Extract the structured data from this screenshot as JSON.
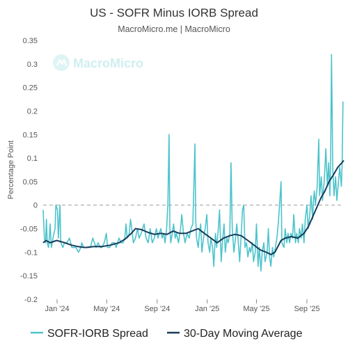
{
  "chart_data": {
    "type": "line",
    "title": "US - SOFR Minus IORB Spread",
    "subtitle": "MacroMicro.me | MacroMicro",
    "ylabel": "Percentage Point",
    "ylim": [
      -0.2,
      0.35
    ],
    "yticks": [
      0.35,
      0.3,
      0.25,
      0.2,
      0.15,
      0.1,
      0.05,
      0,
      -0.05,
      -0.1,
      -0.15,
      -0.2
    ],
    "ytick_labels": [
      "0.35",
      "0.3",
      "0.25",
      "0.2",
      "0.15",
      "0.1",
      "0.05",
      "0",
      "-0.05",
      "-0.1",
      "-0.15",
      "-0.2"
    ],
    "xlim": [
      "2023-11-28",
      "2025-11-30"
    ],
    "xticks": [
      {
        "date": "2024-01-01",
        "label": "Jan '24"
      },
      {
        "date": "2024-05-01",
        "label": "May '24"
      },
      {
        "date": "2024-09-01",
        "label": "Sep '24"
      },
      {
        "date": "2025-01-01",
        "label": "Jan '25"
      },
      {
        "date": "2025-05-01",
        "label": "May '25"
      },
      {
        "date": "2025-09-01",
        "label": "Sep '25"
      }
    ],
    "reference_line": {
      "y": 0,
      "style": "dashed"
    },
    "legend_position": "bottom",
    "series": [
      {
        "name": "SOFR-IORB Spread",
        "color": "#4cc3cb",
        "points": [
          [
            "2023-11-28",
            -0.01
          ],
          [
            "2023-12-01",
            -0.07
          ],
          [
            "2023-12-04",
            -0.08
          ],
          [
            "2023-12-06",
            -0.03
          ],
          [
            "2023-12-08",
            -0.08
          ],
          [
            "2023-12-11",
            -0.09
          ],
          [
            "2023-12-13",
            -0.07
          ],
          [
            "2023-12-15",
            -0.04
          ],
          [
            "2023-12-18",
            -0.09
          ],
          [
            "2023-12-20",
            -0.08
          ],
          [
            "2023-12-22",
            -0.07
          ],
          [
            "2023-12-27",
            -0.05
          ],
          [
            "2023-12-29",
            0.0
          ],
          [
            "2024-01-02",
            -0.01
          ],
          [
            "2024-01-04",
            -0.07
          ],
          [
            "2024-01-08",
            0.0
          ],
          [
            "2024-01-10",
            -0.08
          ],
          [
            "2024-01-15",
            -0.09
          ],
          [
            "2024-01-19",
            -0.08
          ],
          [
            "2024-01-25",
            -0.08
          ],
          [
            "2024-01-31",
            -0.07
          ],
          [
            "2024-02-06",
            -0.09
          ],
          [
            "2024-02-12",
            -0.09
          ],
          [
            "2024-02-16",
            -0.09
          ],
          [
            "2024-02-22",
            -0.1
          ],
          [
            "2024-02-28",
            -0.09
          ],
          [
            "2024-03-01",
            -0.08
          ],
          [
            "2024-03-06",
            -0.09
          ],
          [
            "2024-03-12",
            -0.09
          ],
          [
            "2024-03-18",
            -0.09
          ],
          [
            "2024-03-22",
            -0.09
          ],
          [
            "2024-03-28",
            -0.07
          ],
          [
            "2024-04-01",
            -0.08
          ],
          [
            "2024-04-05",
            -0.09
          ],
          [
            "2024-04-10",
            -0.08
          ],
          [
            "2024-04-15",
            -0.09
          ],
          [
            "2024-04-19",
            -0.09
          ],
          [
            "2024-04-25",
            -0.08
          ],
          [
            "2024-04-30",
            -0.06
          ],
          [
            "2024-05-03",
            -0.09
          ],
          [
            "2024-05-08",
            -0.09
          ],
          [
            "2024-05-14",
            -0.08
          ],
          [
            "2024-05-20",
            -0.08
          ],
          [
            "2024-05-24",
            -0.09
          ],
          [
            "2024-05-31",
            -0.07
          ],
          [
            "2024-06-05",
            -0.08
          ],
          [
            "2024-06-10",
            -0.08
          ],
          [
            "2024-06-14",
            -0.07
          ],
          [
            "2024-06-17",
            -0.04
          ],
          [
            "2024-06-20",
            -0.07
          ],
          [
            "2024-06-25",
            -0.06
          ],
          [
            "2024-06-28",
            -0.03
          ],
          [
            "2024-07-01",
            -0.05
          ],
          [
            "2024-07-05",
            -0.08
          ],
          [
            "2024-07-10",
            -0.07
          ],
          [
            "2024-07-15",
            -0.05
          ],
          [
            "2024-07-19",
            -0.07
          ],
          [
            "2024-07-24",
            -0.06
          ],
          [
            "2024-07-31",
            -0.04
          ],
          [
            "2024-08-05",
            -0.07
          ],
          [
            "2024-08-10",
            -0.08
          ],
          [
            "2024-08-15",
            -0.05
          ],
          [
            "2024-08-20",
            -0.08
          ],
          [
            "2024-08-25",
            -0.07
          ],
          [
            "2024-08-30",
            -0.05
          ],
          [
            "2024-09-03",
            -0.07
          ],
          [
            "2024-09-06",
            -0.06
          ],
          [
            "2024-09-10",
            -0.05
          ],
          [
            "2024-09-13",
            -0.07
          ],
          [
            "2024-09-17",
            -0.06
          ],
          [
            "2024-09-20",
            -0.08
          ],
          [
            "2024-09-24",
            -0.05
          ],
          [
            "2024-09-27",
            0.0
          ],
          [
            "2024-09-30",
            0.15
          ],
          [
            "2024-10-02",
            -0.05
          ],
          [
            "2024-10-04",
            -0.08
          ],
          [
            "2024-10-08",
            -0.06
          ],
          [
            "2024-10-11",
            -0.04
          ],
          [
            "2024-10-15",
            -0.07
          ],
          [
            "2024-10-18",
            -0.06
          ],
          [
            "2024-10-23",
            -0.08
          ],
          [
            "2024-10-28",
            -0.05
          ],
          [
            "2024-10-31",
            -0.02
          ],
          [
            "2024-11-04",
            -0.06
          ],
          [
            "2024-11-08",
            -0.08
          ],
          [
            "2024-11-13",
            -0.06
          ],
          [
            "2024-11-18",
            -0.07
          ],
          [
            "2024-11-22",
            -0.05
          ],
          [
            "2024-11-27",
            -0.04
          ],
          [
            "2024-12-02",
            0.13
          ],
          [
            "2024-12-04",
            -0.03
          ],
          [
            "2024-12-06",
            -0.07
          ],
          [
            "2024-12-10",
            -0.09
          ],
          [
            "2024-12-13",
            -0.06
          ],
          [
            "2024-12-16",
            -0.04
          ],
          [
            "2024-12-19",
            -0.1
          ],
          [
            "2024-12-23",
            -0.07
          ],
          [
            "2024-12-27",
            -0.05
          ],
          [
            "2024-12-31",
            -0.02
          ],
          [
            "2025-01-03",
            -0.08
          ],
          [
            "2025-01-07",
            -0.1
          ],
          [
            "2025-01-10",
            -0.07
          ],
          [
            "2025-01-14",
            -0.09
          ],
          [
            "2025-01-17",
            -0.13
          ],
          [
            "2025-01-21",
            -0.06
          ],
          [
            "2025-01-24",
            -0.09
          ],
          [
            "2025-01-28",
            -0.05
          ],
          [
            "2025-01-31",
            -0.01
          ],
          [
            "2025-02-04",
            -0.12
          ],
          [
            "2025-02-07",
            -0.08
          ],
          [
            "2025-02-11",
            -0.04
          ],
          [
            "2025-02-14",
            -0.1
          ],
          [
            "2025-02-18",
            -0.07
          ],
          [
            "2025-02-21",
            -0.08
          ],
          [
            "2025-02-25",
            -0.06
          ],
          [
            "2025-02-28",
            0.09
          ],
          [
            "2025-03-03",
            -0.05
          ],
          [
            "2025-03-07",
            -0.1
          ],
          [
            "2025-03-11",
            -0.07
          ],
          [
            "2025-03-14",
            -0.04
          ],
          [
            "2025-03-18",
            -0.08
          ],
          [
            "2025-03-21",
            -0.12
          ],
          [
            "2025-03-25",
            -0.06
          ],
          [
            "2025-03-28",
            -0.01
          ],
          [
            "2025-03-31",
            0.0
          ],
          [
            "2025-04-03",
            -0.09
          ],
          [
            "2025-04-07",
            -0.08
          ],
          [
            "2025-04-10",
            -0.11
          ],
          [
            "2025-04-14",
            -0.09
          ],
          [
            "2025-04-17",
            -0.1
          ],
          [
            "2025-04-21",
            -0.08
          ],
          [
            "2025-04-24",
            -0.12
          ],
          [
            "2025-04-28",
            -0.1
          ],
          [
            "2025-05-01",
            -0.04
          ],
          [
            "2025-05-05",
            -0.13
          ],
          [
            "2025-05-08",
            -0.09
          ],
          [
            "2025-05-12",
            -0.14
          ],
          [
            "2025-05-15",
            -0.1
          ],
          [
            "2025-05-19",
            -0.08
          ],
          [
            "2025-05-22",
            -0.12
          ],
          [
            "2025-05-27",
            -0.1
          ],
          [
            "2025-05-30",
            -0.05
          ],
          [
            "2025-06-02",
            -0.11
          ],
          [
            "2025-06-05",
            -0.13
          ],
          [
            "2025-06-09",
            -0.09
          ],
          [
            "2025-06-12",
            -0.11
          ],
          [
            "2025-06-16",
            -0.09
          ],
          [
            "2025-06-20",
            -0.07
          ],
          [
            "2025-06-24",
            -0.03
          ],
          [
            "2025-06-27",
            0.01
          ],
          [
            "2025-06-30",
            0.05
          ],
          [
            "2025-07-02",
            -0.08
          ],
          [
            "2025-07-07",
            -0.09
          ],
          [
            "2025-07-10",
            -0.05
          ],
          [
            "2025-07-14",
            -0.08
          ],
          [
            "2025-07-17",
            -0.06
          ],
          [
            "2025-07-21",
            -0.08
          ],
          [
            "2025-07-24",
            -0.06
          ],
          [
            "2025-07-28",
            -0.07
          ],
          [
            "2025-07-31",
            -0.02
          ],
          [
            "2025-08-04",
            -0.08
          ],
          [
            "2025-08-07",
            -0.06
          ],
          [
            "2025-08-11",
            -0.08
          ],
          [
            "2025-08-14",
            -0.05
          ],
          [
            "2025-08-18",
            -0.07
          ],
          [
            "2025-08-21",
            -0.04
          ],
          [
            "2025-08-25",
            -0.08
          ],
          [
            "2025-08-28",
            -0.03
          ],
          [
            "2025-09-01",
            0.0
          ],
          [
            "2025-09-04",
            -0.05
          ],
          [
            "2025-09-08",
            -0.02
          ],
          [
            "2025-09-11",
            0.02
          ],
          [
            "2025-09-15",
            -0.03
          ],
          [
            "2025-09-17",
            0.01
          ],
          [
            "2025-09-19",
            0.03
          ],
          [
            "2025-09-22",
            0.0
          ],
          [
            "2025-09-24",
            0.02
          ],
          [
            "2025-09-26",
            0.04
          ],
          [
            "2025-09-30",
            0.14
          ],
          [
            "2025-10-02",
            0.02
          ],
          [
            "2025-10-06",
            0.06
          ],
          [
            "2025-10-09",
            0.01
          ],
          [
            "2025-10-13",
            0.05
          ],
          [
            "2025-10-15",
            0.08
          ],
          [
            "2025-10-17",
            0.12
          ],
          [
            "2025-10-21",
            0.04
          ],
          [
            "2025-10-24",
            0.09
          ],
          [
            "2025-10-27",
            0.02
          ],
          [
            "2025-10-29",
            0.1
          ],
          [
            "2025-10-31",
            0.32
          ],
          [
            "2025-11-03",
            0.08
          ],
          [
            "2025-11-06",
            0.02
          ],
          [
            "2025-11-10",
            0.06
          ],
          [
            "2025-11-13",
            0.01
          ],
          [
            "2025-11-17",
            0.05
          ],
          [
            "2025-11-20",
            0.08
          ],
          [
            "2025-11-24",
            0.04
          ],
          [
            "2025-11-26",
            0.09
          ],
          [
            "2025-11-28",
            0.22
          ]
        ]
      },
      {
        "name": "30-Day Moving Average",
        "color": "#163a5a",
        "points": [
          [
            "2023-11-28",
            -0.08
          ],
          [
            "2023-12-05",
            -0.075
          ],
          [
            "2023-12-15",
            -0.08
          ],
          [
            "2023-12-31",
            -0.075
          ],
          [
            "2024-01-20",
            -0.08
          ],
          [
            "2024-02-05",
            -0.085
          ],
          [
            "2024-02-20",
            -0.088
          ],
          [
            "2024-03-10",
            -0.09
          ],
          [
            "2024-03-31",
            -0.088
          ],
          [
            "2024-04-20",
            -0.088
          ],
          [
            "2024-05-10",
            -0.085
          ],
          [
            "2024-05-31",
            -0.08
          ],
          [
            "2024-06-15",
            -0.072
          ],
          [
            "2024-06-30",
            -0.06
          ],
          [
            "2024-07-10",
            -0.05
          ],
          [
            "2024-07-25",
            -0.052
          ],
          [
            "2024-08-10",
            -0.058
          ],
          [
            "2024-08-25",
            -0.062
          ],
          [
            "2024-09-10",
            -0.06
          ],
          [
            "2024-09-25",
            -0.062
          ],
          [
            "2024-10-10",
            -0.055
          ],
          [
            "2024-10-25",
            -0.06
          ],
          [
            "2024-11-10",
            -0.06
          ],
          [
            "2024-11-25",
            -0.055
          ],
          [
            "2024-12-10",
            -0.05
          ],
          [
            "2024-12-25",
            -0.06
          ],
          [
            "2025-01-10",
            -0.07
          ],
          [
            "2025-01-25",
            -0.08
          ],
          [
            "2025-02-10",
            -0.07
          ],
          [
            "2025-02-25",
            -0.065
          ],
          [
            "2025-03-10",
            -0.062
          ],
          [
            "2025-03-25",
            -0.065
          ],
          [
            "2025-04-10",
            -0.075
          ],
          [
            "2025-04-25",
            -0.085
          ],
          [
            "2025-05-10",
            -0.095
          ],
          [
            "2025-05-25",
            -0.1
          ],
          [
            "2025-06-05",
            -0.105
          ],
          [
            "2025-06-15",
            -0.1
          ],
          [
            "2025-06-30",
            -0.075
          ],
          [
            "2025-07-10",
            -0.07
          ],
          [
            "2025-07-25",
            -0.067
          ],
          [
            "2025-08-10",
            -0.07
          ],
          [
            "2025-08-25",
            -0.06
          ],
          [
            "2025-09-05",
            -0.045
          ],
          [
            "2025-09-15",
            -0.025
          ],
          [
            "2025-09-25",
            -0.005
          ],
          [
            "2025-10-05",
            0.015
          ],
          [
            "2025-10-15",
            0.03
          ],
          [
            "2025-10-25",
            0.05
          ],
          [
            "2025-11-05",
            0.065
          ],
          [
            "2025-11-15",
            0.08
          ],
          [
            "2025-11-30",
            0.095
          ]
        ]
      }
    ]
  },
  "brand": {
    "watermark": "MacroMicro",
    "watermark_icon": "macromicro-logo-icon"
  }
}
